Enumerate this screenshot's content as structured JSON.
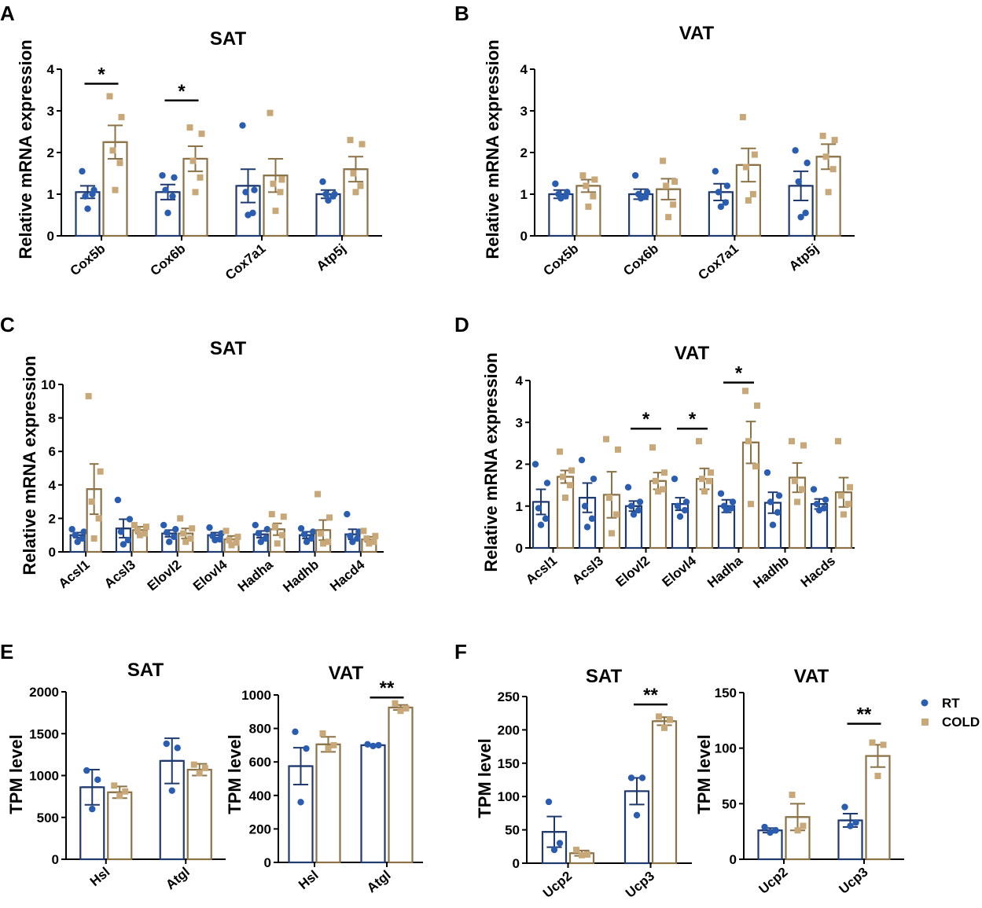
{
  "colors": {
    "RT": "#1f3a6e",
    "RT_point": "#2a5db0",
    "COLD": "#8b7347",
    "COLD_point": "#c8a878"
  },
  "legend": [
    {
      "key": "RT",
      "label": "RT"
    },
    {
      "key": "COLD",
      "label": "COLD"
    }
  ],
  "chart_data": [
    {
      "panel": "A",
      "title": "SAT",
      "type": "bar",
      "ylabel": "Relative mRNA expression",
      "ylim": [
        0,
        4
      ],
      "yticks": [
        0,
        1,
        2,
        3,
        4
      ],
      "categories": [
        "Cox5b",
        "Cox6b",
        "Cox7a1",
        "Atp5j"
      ],
      "series": [
        {
          "name": "RT",
          "values": [
            1.05,
            1.05,
            1.2,
            1.0
          ],
          "sem": [
            0.15,
            0.18,
            0.4,
            0.1
          ],
          "points": [
            [
              1.55,
              1.1,
              0.95,
              1.0,
              0.65
            ],
            [
              1.45,
              1.4,
              1.1,
              0.95,
              0.55
            ],
            [
              2.65,
              1.1,
              1.05,
              0.55,
              0.5
            ],
            [
              1.3,
              1.0,
              1.0,
              0.95,
              0.85
            ]
          ]
        },
        {
          "name": "COLD",
          "values": [
            2.25,
            1.85,
            1.45,
            1.6
          ],
          "sem": [
            0.4,
            0.3,
            0.4,
            0.3
          ],
          "points": [
            [
              3.35,
              2.85,
              2.05,
              1.75,
              1.1
            ],
            [
              2.6,
              2.45,
              1.8,
              1.4,
              1.05
            ],
            [
              2.95,
              1.35,
              1.25,
              1.05,
              0.6
            ],
            [
              2.3,
              2.2,
              1.5,
              1.2,
              1.05
            ]
          ]
        }
      ],
      "significance": [
        {
          "category": "Cox5b",
          "label": "*",
          "y": 3.65
        },
        {
          "category": "Cox6b",
          "label": "*",
          "y": 3.25
        }
      ]
    },
    {
      "panel": "B",
      "title": "VAT",
      "type": "bar",
      "ylabel": "Relative mRNA expression",
      "ylim": [
        0,
        4
      ],
      "yticks": [
        0,
        1,
        2,
        3,
        4
      ],
      "categories": [
        "Cox5b",
        "Cox6b",
        "Cox7a1",
        "Atp5j"
      ],
      "series": [
        {
          "name": "RT",
          "values": [
            1.0,
            1.0,
            1.05,
            1.2
          ],
          "sem": [
            0.1,
            0.12,
            0.2,
            0.35
          ],
          "points": [
            [
              1.25,
              1.05,
              1.0,
              0.95,
              0.9
            ],
            [
              1.45,
              1.05,
              1.0,
              0.95,
              0.9
            ],
            [
              1.55,
              1.2,
              1.05,
              0.8,
              0.7
            ],
            [
              2.05,
              1.75,
              1.3,
              0.55,
              0.45
            ]
          ]
        },
        {
          "name": "COLD",
          "values": [
            1.2,
            1.12,
            1.7,
            1.9
          ],
          "sem": [
            0.15,
            0.25,
            0.4,
            0.3
          ],
          "points": [
            [
              1.45,
              1.35,
              1.2,
              0.95,
              0.7
            ],
            [
              1.8,
              1.3,
              1.2,
              0.75,
              0.45
            ],
            [
              2.85,
              1.95,
              1.65,
              1.0,
              0.85
            ],
            [
              2.4,
              2.3,
              1.9,
              1.6,
              1.05
            ]
          ]
        }
      ],
      "significance": []
    },
    {
      "panel": "C",
      "title": "SAT",
      "type": "bar",
      "ylabel": "Relative mRNA expression",
      "ylim": [
        0,
        10
      ],
      "yticks": [
        0,
        2,
        4,
        6,
        8,
        10
      ],
      "categories": [
        "Acsl1",
        "Acsl3",
        "Elovl2",
        "Elovl4",
        "Hadha",
        "Hadhb",
        "Hacd4"
      ],
      "series": [
        {
          "name": "RT",
          "values": [
            1.0,
            1.4,
            1.1,
            1.0,
            1.05,
            1.0,
            1.05
          ],
          "sem": [
            0.15,
            0.55,
            0.2,
            0.15,
            0.2,
            0.2,
            0.3
          ],
          "points": [
            [
              1.35,
              1.2,
              1.0,
              0.8,
              0.6
            ],
            [
              3.1,
              1.95,
              1.2,
              0.7,
              0.45
            ],
            [
              1.6,
              1.35,
              1.15,
              0.9,
              0.6
            ],
            [
              1.45,
              1.1,
              0.95,
              0.75,
              0.7
            ],
            [
              1.6,
              1.35,
              1.1,
              0.8,
              0.6
            ],
            [
              1.4,
              1.2,
              1.05,
              0.8,
              0.6
            ],
            [
              2.25,
              1.2,
              0.95,
              0.8,
              0.6
            ]
          ]
        },
        {
          "name": "COLD",
          "values": [
            3.75,
            1.3,
            1.1,
            0.75,
            1.35,
            1.3,
            0.75
          ],
          "sem": [
            1.5,
            0.2,
            0.3,
            0.2,
            0.35,
            0.6,
            0.15
          ],
          "points": [
            [
              9.3,
              4.8,
              3.0,
              2.0,
              0.8
            ],
            [
              1.6,
              1.5,
              1.3,
              1.1,
              1.0
            ],
            [
              2.0,
              1.4,
              1.1,
              0.8,
              0.6
            ],
            [
              1.25,
              0.9,
              0.7,
              0.55,
              0.4
            ],
            [
              2.25,
              2.1,
              1.5,
              1.0,
              0.5
            ],
            [
              3.45,
              2.05,
              1.1,
              0.6,
              0.5
            ],
            [
              1.25,
              0.95,
              0.8,
              0.6,
              0.5
            ]
          ]
        }
      ],
      "significance": []
    },
    {
      "panel": "D",
      "title": "VAT",
      "type": "bar",
      "ylabel": "Relative mRNA expression",
      "ylim": [
        0,
        4
      ],
      "yticks": [
        0,
        1,
        2,
        3,
        4
      ],
      "categories": [
        "Acsl1",
        "Acsl3",
        "Elovl2",
        "Elovl4",
        "Hadha",
        "Hadhb",
        "Hacds"
      ],
      "series": [
        {
          "name": "RT",
          "values": [
            1.1,
            1.2,
            1.0,
            1.05,
            1.0,
            1.08,
            1.05
          ],
          "sem": [
            0.3,
            0.35,
            0.12,
            0.15,
            0.15,
            0.25,
            0.12
          ],
          "points": [
            [
              2.0,
              1.55,
              0.95,
              0.7,
              0.55
            ],
            [
              2.1,
              1.65,
              1.0,
              0.7,
              0.5
            ],
            [
              1.45,
              1.1,
              1.0,
              0.9,
              0.8
            ],
            [
              1.65,
              1.1,
              1.0,
              0.9,
              0.75
            ],
            [
              1.3,
              1.1,
              1.0,
              0.95,
              0.9
            ],
            [
              1.8,
              1.25,
              1.1,
              0.85,
              0.55
            ],
            [
              1.4,
              1.15,
              1.05,
              0.95,
              0.9
            ]
          ]
        },
        {
          "name": "COLD",
          "values": [
            1.7,
            1.27,
            1.6,
            1.65,
            2.52,
            1.68,
            1.33
          ],
          "sem": [
            0.15,
            0.55,
            0.2,
            0.25,
            0.5,
            0.35,
            0.35
          ],
          "points": [
            [
              2.3,
              1.85,
              1.7,
              1.5,
              1.2
            ],
            [
              2.6,
              2.35,
              1.2,
              0.8,
              0.35
            ],
            [
              2.4,
              1.8,
              1.6,
              1.4,
              1.35
            ],
            [
              2.55,
              1.8,
              1.65,
              1.6,
              1.35
            ],
            [
              3.75,
              3.4,
              2.55,
              1.95,
              1.05
            ],
            [
              2.55,
              2.45,
              1.6,
              1.4,
              1.1
            ],
            [
              2.55,
              1.45,
              1.25,
              1.05,
              0.8
            ]
          ]
        }
      ],
      "significance": [
        {
          "category": "Elovl2",
          "label": "*",
          "y": 2.85
        },
        {
          "category": "Elovl4",
          "label": "*",
          "y": 2.85
        },
        {
          "category": "Hadha",
          "label": "*",
          "y": 3.95
        }
      ]
    },
    {
      "panel": "E",
      "title": "SAT",
      "type": "bar",
      "ylabel": "TPM level",
      "ylim": [
        0,
        2000
      ],
      "yticks": [
        0,
        500,
        1000,
        1500,
        2000
      ],
      "categories": [
        "Hsl",
        "Atgl"
      ],
      "series": [
        {
          "name": "RT",
          "values": [
            860,
            1175
          ],
          "sem": [
            210,
            270
          ],
          "points": [
            [
              1060,
              950,
              600
            ],
            [
              1380,
              1330,
              820
            ]
          ]
        },
        {
          "name": "COLD",
          "values": [
            800,
            1070
          ],
          "sem": [
            70,
            70
          ],
          "points": [
            [
              880,
              810,
              760
            ],
            [
              1130,
              1090,
              1030
            ]
          ]
        }
      ],
      "significance": []
    },
    {
      "panel": "E2",
      "title": "VAT",
      "type": "bar",
      "ylabel": "TPM level",
      "ylim": [
        0,
        1000
      ],
      "yticks": [
        0,
        200,
        400,
        600,
        800,
        1000
      ],
      "categories": [
        "Hsl",
        "Atgl"
      ],
      "series": [
        {
          "name": "RT",
          "values": [
            575,
            700
          ],
          "sem": [
            110,
            5
          ],
          "points": [
            [
              780,
              680,
              360
            ],
            [
              705,
              700,
              695
            ]
          ]
        },
        {
          "name": "COLD",
          "values": [
            705,
            925
          ],
          "sem": [
            45,
            15
          ],
          "points": [
            [
              770,
              700,
              680
            ],
            [
              950,
              920,
              905
            ]
          ]
        }
      ],
      "significance": [
        {
          "category": "Atgl",
          "label": "**",
          "y": 985
        }
      ]
    },
    {
      "panel": "F",
      "title": "SAT",
      "type": "bar",
      "ylabel": "TPM level",
      "ylim": [
        0,
        250
      ],
      "yticks": [
        0,
        50,
        100,
        150,
        200,
        250
      ],
      "categories": [
        "Ucp2",
        "Ucp3"
      ],
      "series": [
        {
          "name": "RT",
          "values": [
            47,
            108
          ],
          "sem": [
            23,
            20
          ],
          "points": [
            [
              92,
              30,
              20
            ],
            [
              128,
              128,
              72
            ]
          ]
        },
        {
          "name": "COLD",
          "values": [
            15,
            213
          ],
          "sem": [
            4,
            6
          ],
          "points": [
            [
              20,
              13,
              12
            ],
            [
              220,
              215,
              203
            ]
          ]
        }
      ],
      "significance": [
        {
          "category": "Ucp3",
          "label": "**",
          "y": 238
        }
      ]
    },
    {
      "panel": "F2",
      "title": "VAT",
      "type": "bar",
      "ylabel": "TPM level",
      "ylim": [
        0,
        150
      ],
      "yticks": [
        0,
        50,
        100,
        150
      ],
      "categories": [
        "Ucp2",
        "Ucp3"
      ],
      "series": [
        {
          "name": "RT",
          "values": [
            26,
            35
          ],
          "sem": [
            2,
            6
          ],
          "points": [
            [
              29,
              26,
              24
            ],
            [
              47,
              33,
              30
            ]
          ]
        },
        {
          "name": "COLD",
          "values": [
            38,
            93
          ],
          "sem": [
            12,
            10
          ],
          "points": [
            [
              58,
              30,
              26
            ],
            [
              105,
              103,
              75
            ]
          ]
        }
      ],
      "significance": [
        {
          "category": "Ucp3",
          "label": "**",
          "y": 122
        }
      ]
    }
  ],
  "panel_letters": [
    "A",
    "B",
    "C",
    "D",
    "E",
    "F"
  ]
}
